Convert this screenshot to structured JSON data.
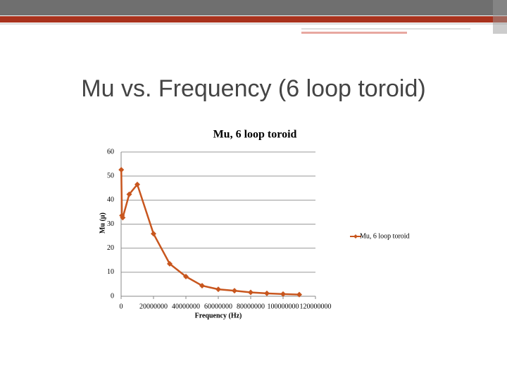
{
  "slide_title": "Mu vs. Frequency (6 loop toroid)",
  "chart_data": {
    "type": "line",
    "title": "Mu, 6 loop toroid",
    "x_label": "Frequency (Hz)",
    "y_label": "Mu (μ)",
    "x": [
      100000,
      500000,
      1000000,
      5000000,
      10000000,
      20000000,
      30000000,
      40000000,
      50000000,
      60000000,
      70000000,
      80000000,
      90000000,
      100000000,
      110000000
    ],
    "series": [
      {
        "name": "Mu, 6 loop toroid",
        "color": "#c8561e",
        "values": [
          52.6,
          33.6,
          32.7,
          42.4,
          46.5,
          26,
          13.5,
          8.2,
          4.4,
          2.9,
          2.3,
          1.6,
          1.2,
          0.9,
          0.7
        ]
      }
    ],
    "xlim": [
      0,
      120000000
    ],
    "xticks": [
      0,
      20000000,
      40000000,
      60000000,
      80000000,
      100000000,
      120000000
    ],
    "ylim": [
      0,
      60
    ],
    "yticks": [
      0,
      10,
      20,
      30,
      40,
      50,
      60
    ],
    "grid": true,
    "legend": "right"
  }
}
